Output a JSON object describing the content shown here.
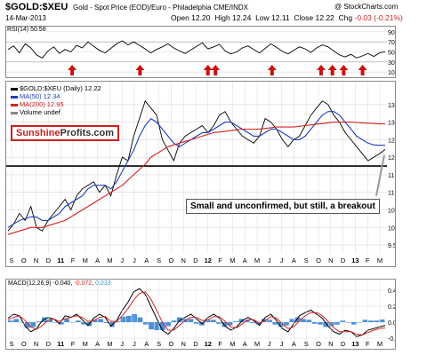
{
  "header": {
    "symbol": "$GOLD:$XEU",
    "description": "Gold - Spot Price (EOD)/Euro - Philadelphia  CME/INDX",
    "copyright": "@ StockCharts.com",
    "date": "14-Mar-2013",
    "ohlc": {
      "open_label": "Open",
      "open": "12.20",
      "high_label": "High",
      "high": "12.24",
      "low_label": "Low",
      "low": "12.11",
      "close_label": "Close",
      "close": "12.22",
      "chg_label": "Chg",
      "chg": "-0.03 (-0.21%)"
    }
  },
  "logo": {
    "part1": "Sunshine",
    "part2": "Profits.com"
  },
  "colors": {
    "price": "#000000",
    "ma50": "#1f3fbf",
    "ma200": "#d42020",
    "arrows": "#cc1111",
    "macd_hist": "#4a90d9",
    "grid": "#d8d8d8"
  },
  "chart_data": [
    {
      "type": "line",
      "title": "$GOLD:$XEU (Daily) 12.22",
      "legend": [
        "$GOLD:$XEU (Daily) 12.22",
        "MA(50) 12.34",
        "MA(200) 12.95",
        "Volume undef"
      ],
      "annotation": "Small and unconfirmed, but still, a breakout",
      "x_ticks": [
        "S",
        "O",
        "N",
        "D",
        "11",
        "F",
        "M",
        "A",
        "M",
        "J",
        "J",
        "A",
        "S",
        "O",
        "N",
        "D",
        "12",
        "F",
        "M",
        "A",
        "M",
        "J",
        "J",
        "A",
        "S",
        "O",
        "N",
        "D",
        "13",
        "F",
        "M"
      ],
      "year_ticks": [
        "11",
        "12",
        "13"
      ],
      "y_ticks": [
        9.5,
        10.0,
        10.5,
        11.0,
        11.5,
        12.0,
        12.5,
        13.0,
        13.5
      ],
      "ylim": [
        9.3,
        14.0
      ],
      "horizontal_line": 11.75,
      "series": [
        {
          "name": "$GOLD:$XEU",
          "values": [
            9.9,
            10.1,
            10.4,
            10.2,
            10.6,
            10.0,
            9.9,
            10.2,
            10.4,
            10.6,
            10.8,
            10.5,
            10.9,
            11.1,
            11.2,
            11.3,
            11.0,
            11.2,
            10.9,
            11.5,
            12.0,
            11.9,
            12.6,
            13.1,
            13.6,
            13.4,
            13.2,
            12.5,
            12.2,
            11.9,
            12.4,
            12.6,
            12.7,
            12.8,
            12.9,
            12.7,
            12.9,
            13.2,
            13.3,
            13.0,
            12.8,
            12.6,
            12.5,
            12.4,
            12.6,
            13.1,
            13.0,
            12.8,
            12.5,
            12.3,
            12.5,
            12.6,
            12.9,
            13.2,
            13.4,
            13.6,
            13.5,
            13.2,
            13.0,
            12.7,
            12.5,
            12.3,
            12.1,
            11.9,
            12.0,
            12.1,
            12.22
          ]
        },
        {
          "name": "MA(50)",
          "values": [
            10.0,
            10.1,
            10.2,
            10.25,
            10.3,
            10.3,
            10.2,
            10.2,
            10.3,
            10.4,
            10.6,
            10.7,
            10.8,
            10.9,
            11.1,
            11.2,
            11.2,
            11.2,
            11.1,
            11.3,
            11.6,
            11.9,
            12.2,
            12.6,
            12.9,
            13.1,
            13.0,
            12.8,
            12.6,
            12.4,
            12.3,
            12.4,
            12.5,
            12.6,
            12.7,
            12.7,
            12.8,
            12.9,
            13.0,
            13.0,
            12.9,
            12.8,
            12.7,
            12.6,
            12.6,
            12.7,
            12.8,
            12.8,
            12.7,
            12.6,
            12.5,
            12.5,
            12.6,
            12.8,
            13.0,
            13.2,
            13.3,
            13.3,
            13.2,
            13.0,
            12.8,
            12.6,
            12.5,
            12.4,
            12.35,
            12.34,
            12.34
          ]
        },
        {
          "name": "MA(200)",
          "values": [
            9.8,
            9.85,
            9.9,
            9.95,
            10.0,
            10.0,
            10.0,
            10.05,
            10.1,
            10.15,
            10.2,
            10.3,
            10.4,
            10.5,
            10.6,
            10.7,
            10.8,
            10.9,
            11.0,
            11.1,
            11.2,
            11.35,
            11.5,
            11.65,
            11.8,
            12.0,
            12.1,
            12.2,
            12.3,
            12.35,
            12.4,
            12.45,
            12.5,
            12.55,
            12.6,
            12.65,
            12.7,
            12.72,
            12.74,
            12.76,
            12.78,
            12.8,
            12.8,
            12.8,
            12.8,
            12.82,
            12.84,
            12.86,
            12.86,
            12.86,
            12.86,
            12.88,
            12.9,
            12.92,
            12.94,
            12.96,
            12.98,
            13.0,
            13.0,
            13.0,
            13.0,
            12.99,
            12.98,
            12.97,
            12.96,
            12.95,
            12.95
          ]
        }
      ]
    },
    {
      "type": "line",
      "title": "RSI(14)",
      "last_value": "50.58",
      "y_ticks": [
        10,
        30,
        50,
        70,
        90
      ],
      "ylim": [
        5,
        95
      ],
      "values": [
        55,
        62,
        48,
        66,
        58,
        44,
        38,
        52,
        60,
        47,
        55,
        50,
        63,
        58,
        70,
        61,
        53,
        48,
        57,
        66,
        72,
        64,
        70,
        63,
        56,
        48,
        55,
        60,
        66,
        58,
        52,
        47,
        54,
        61,
        68,
        56,
        60,
        65,
        52,
        46,
        50,
        58,
        62,
        55,
        48,
        57,
        66,
        59,
        51,
        46,
        53,
        60,
        56,
        49,
        58,
        64,
        60,
        52,
        44,
        40,
        45,
        38,
        42,
        47,
        41,
        48,
        50.58
      ],
      "arrow_positions": [
        0.17,
        0.35,
        0.53,
        0.55,
        0.7,
        0.83,
        0.86,
        0.89,
        0.94
      ]
    },
    {
      "type": "line",
      "title": "MACD(12,26,9)",
      "values_text": [
        "-0.040",
        "-0.072",
        "0.033"
      ],
      "y_ticks": [
        -0.2,
        0.0,
        0.2,
        0.4
      ],
      "ylim": [
        -0.3,
        0.5
      ],
      "series": [
        {
          "name": "MACD",
          "values": [
            0.05,
            0.1,
            0.08,
            -0.05,
            -0.12,
            -0.08,
            0.02,
            0.06,
            0.04,
            -0.02,
            0.08,
            0.06,
            0.1,
            0.03,
            -0.04,
            0.05,
            0.1,
            0.06,
            -0.05,
            0.02,
            0.15,
            0.25,
            0.38,
            0.42,
            0.35,
            0.2,
            0.05,
            -0.1,
            -0.15,
            -0.08,
            0.02,
            0.06,
            0.1,
            0.04,
            -0.02,
            0.06,
            0.1,
            0.05,
            -0.05,
            -0.1,
            -0.06,
            0.02,
            0.06,
            0.02,
            -0.04,
            0.06,
            0.1,
            0.02,
            -0.08,
            -0.12,
            -0.02,
            0.08,
            0.12,
            0.15,
            0.1,
            0.05,
            -0.05,
            -0.12,
            -0.15,
            -0.1,
            -0.12,
            -0.18,
            -0.16,
            -0.1,
            -0.08,
            -0.06,
            -0.04
          ]
        },
        {
          "name": "Signal",
          "values": [
            0.03,
            0.06,
            0.08,
            0.02,
            -0.06,
            -0.09,
            -0.04,
            0.02,
            0.04,
            0.01,
            0.04,
            0.06,
            0.08,
            0.06,
            0.01,
            0.02,
            0.06,
            0.07,
            0.01,
            0.01,
            0.08,
            0.17,
            0.28,
            0.36,
            0.38,
            0.29,
            0.15,
            0.0,
            -0.1,
            -0.1,
            -0.04,
            0.02,
            0.06,
            0.06,
            0.02,
            0.03,
            0.07,
            0.07,
            0.01,
            -0.06,
            -0.07,
            -0.02,
            0.03,
            0.03,
            -0.01,
            0.02,
            0.07,
            0.05,
            -0.02,
            -0.08,
            -0.06,
            0.02,
            0.08,
            0.12,
            0.12,
            0.08,
            0.01,
            -0.07,
            -0.12,
            -0.12,
            -0.12,
            -0.15,
            -0.16,
            -0.13,
            -0.1,
            -0.08,
            -0.072
          ]
        },
        {
          "name": "Histogram",
          "values": [
            0.02,
            0.04,
            0.0,
            -0.07,
            -0.06,
            0.01,
            0.06,
            0.04,
            0.0,
            -0.03,
            0.04,
            0.0,
            0.02,
            -0.03,
            -0.05,
            0.03,
            0.04,
            -0.01,
            -0.06,
            0.01,
            0.07,
            0.08,
            0.1,
            0.06,
            -0.03,
            -0.09,
            -0.1,
            -0.1,
            -0.05,
            0.02,
            0.06,
            0.04,
            0.04,
            -0.02,
            -0.04,
            0.03,
            0.03,
            -0.02,
            -0.06,
            -0.04,
            0.01,
            0.04,
            0.03,
            -0.01,
            -0.03,
            0.04,
            0.03,
            -0.03,
            -0.06,
            -0.04,
            0.04,
            0.06,
            0.04,
            0.03,
            -0.02,
            -0.03,
            -0.06,
            -0.05,
            -0.03,
            0.02,
            0.0,
            -0.03,
            0.0,
            0.03,
            0.02,
            0.02,
            0.033
          ]
        }
      ]
    }
  ]
}
